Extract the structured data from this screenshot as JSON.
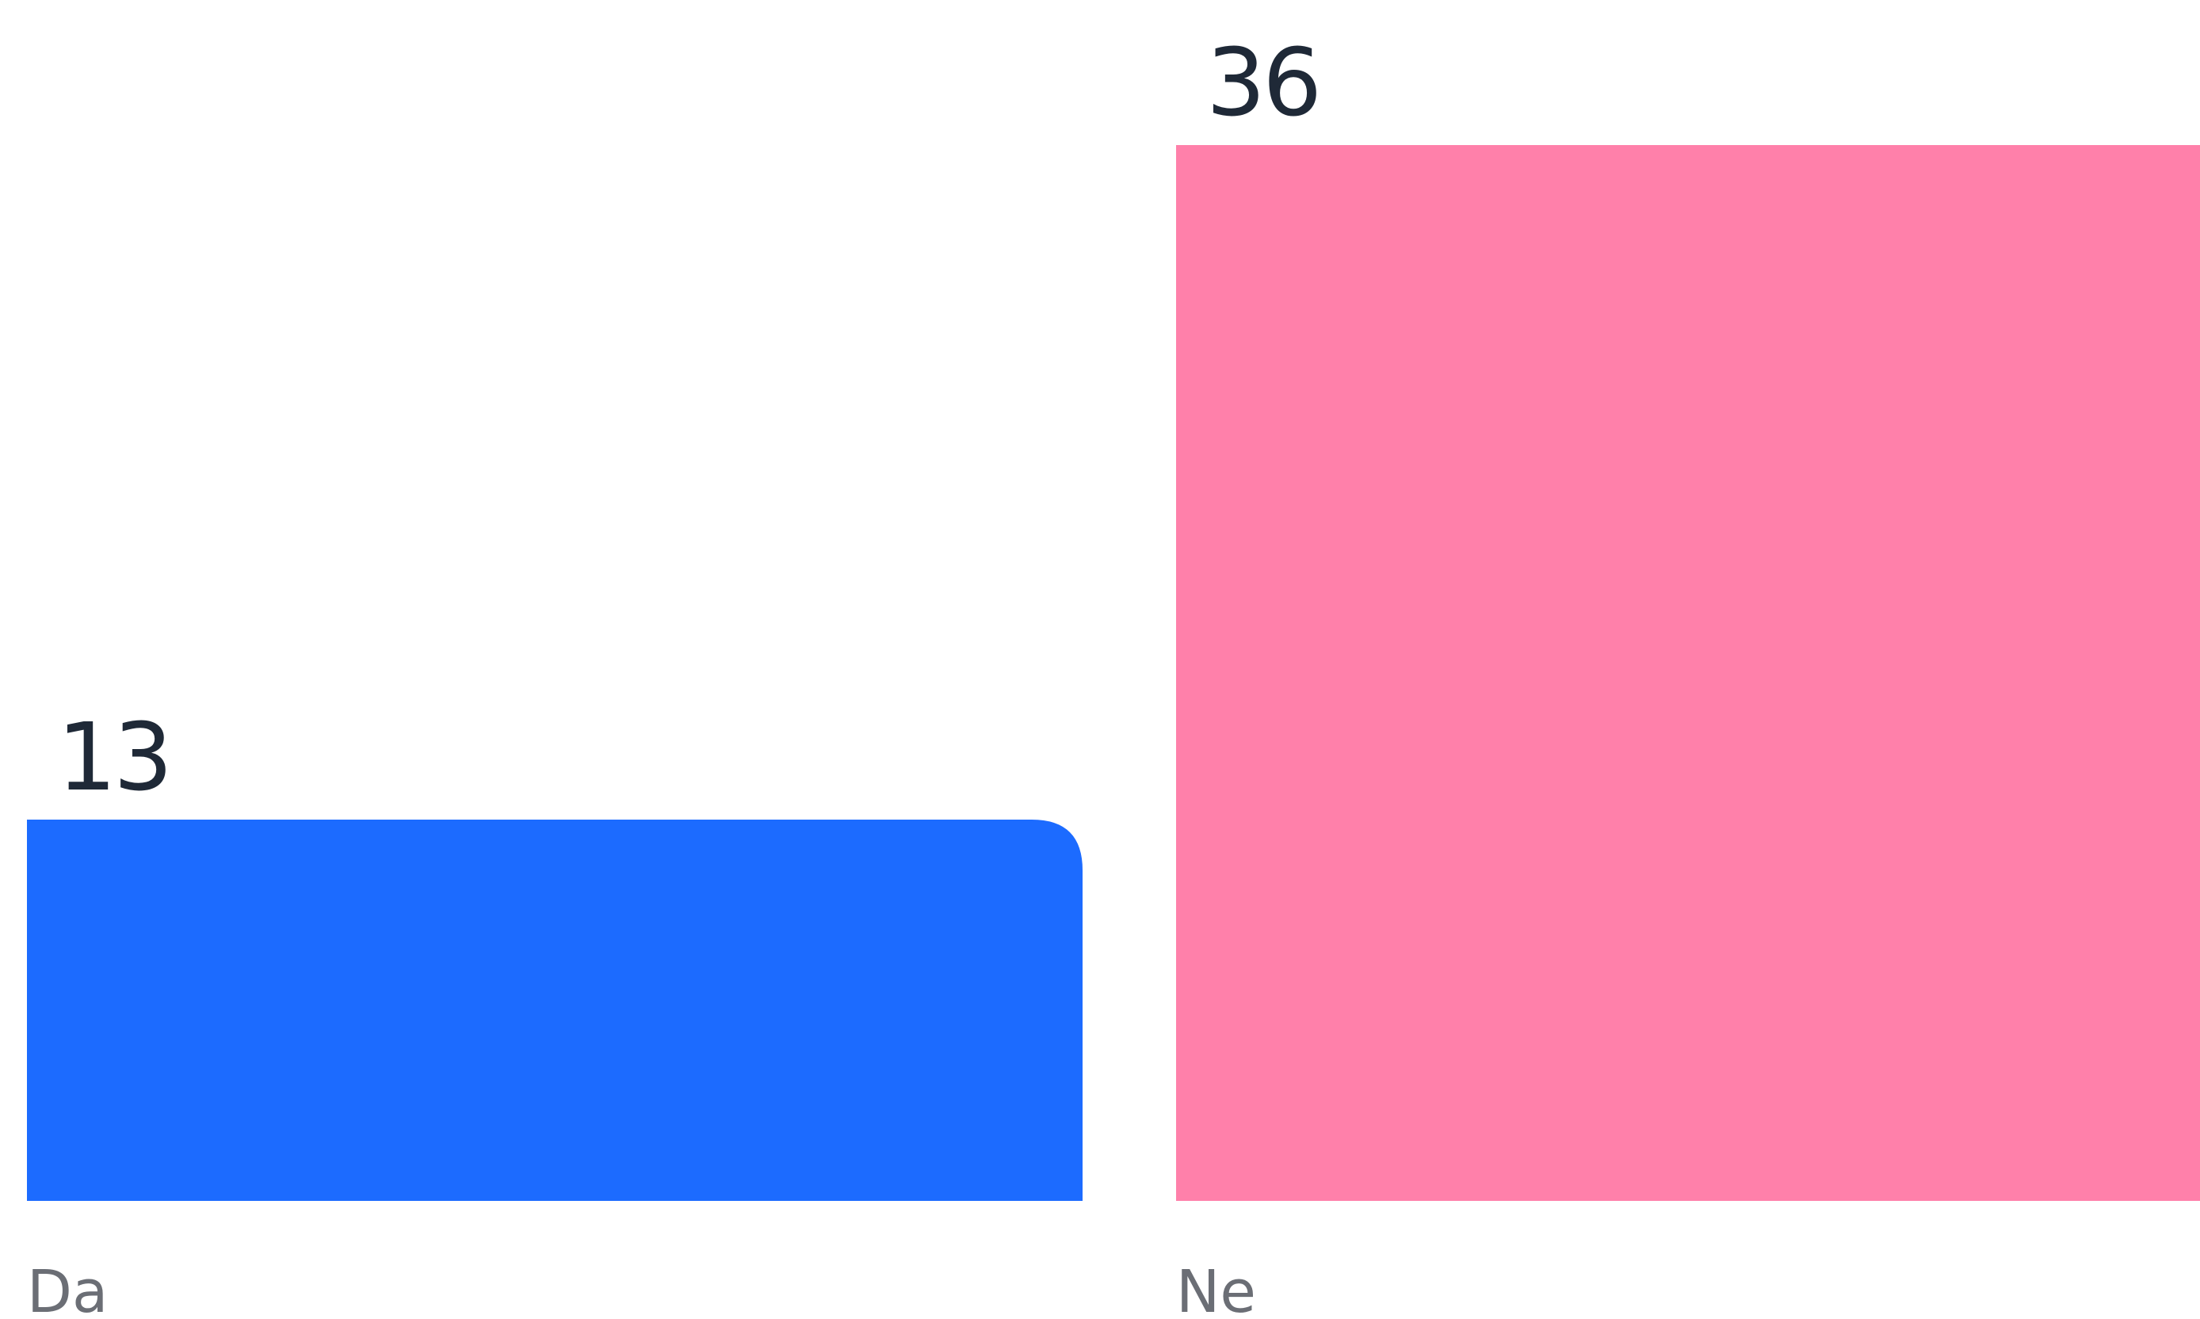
{
  "chart_data": {
    "type": "bar",
    "categories": [
      "Da",
      "Ne"
    ],
    "values": [
      13,
      36
    ],
    "data_labels": [
      "13",
      "36"
    ],
    "colors": [
      "#1c6bff",
      "#ff80aa"
    ],
    "value_label_color": "#1f2937",
    "category_label_color": "#6b6e75",
    "grid": false,
    "legend": "none"
  }
}
